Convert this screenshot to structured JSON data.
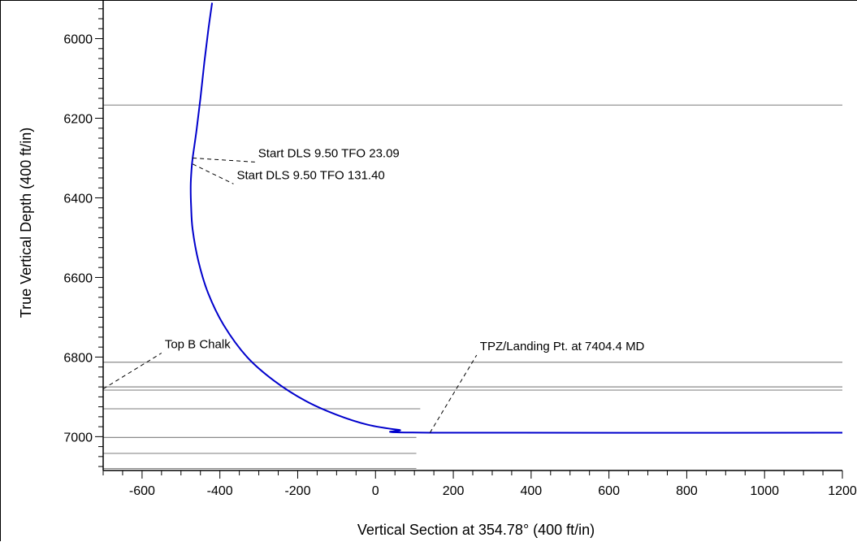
{
  "chart_data": {
    "type": "line",
    "title": "",
    "xlabel": "Vertical Section at 354.78° (400 ft/in)",
    "ylabel": "True Vertical Depth (400 ft/in)",
    "xlim": [
      -700,
      1200
    ],
    "ylim": [
      7085,
      5905
    ],
    "y_inverted": true,
    "x_ticks": [
      -600,
      -400,
      -200,
      0,
      200,
      400,
      600,
      800,
      1000,
      1200
    ],
    "x_tick_labels": [
      "-600",
      "-400",
      "-200",
      "0",
      "200",
      "400",
      "600",
      "800",
      "1000",
      "1200"
    ],
    "y_ticks": [
      6000,
      6200,
      6400,
      6600,
      6800,
      7000
    ],
    "y_tick_labels": [
      "6000",
      "6200",
      "6400",
      "6600",
      "6800",
      "7000"
    ],
    "x_minor_step": 50,
    "y_minor_step": 25,
    "grid": false,
    "series": [
      {
        "color": "#0000cc",
        "points": [
          [
            -420,
            5910
          ],
          [
            -430,
            5980
          ],
          [
            -440,
            6060
          ],
          [
            -450,
            6150
          ],
          [
            -460,
            6230
          ],
          [
            -470,
            6300
          ],
          [
            -473,
            6330
          ],
          [
            -475,
            6370
          ],
          [
            -474,
            6420
          ],
          [
            -470,
            6480
          ],
          [
            -455,
            6560
          ],
          [
            -430,
            6640
          ],
          [
            -390,
            6720
          ],
          [
            -330,
            6800
          ],
          [
            -260,
            6860
          ],
          [
            -180,
            6910
          ],
          [
            -100,
            6945
          ],
          [
            -20,
            6970
          ],
          [
            60,
            6983
          ],
          [
            140,
            6990
          ],
          [
            1200,
            6990
          ]
        ]
      }
    ],
    "formation_lines": [
      {
        "y": 6167,
        "x_start": -700,
        "x_end": 1200
      },
      {
        "y": 6813,
        "x_start": -700,
        "x_end": 1200
      },
      {
        "y": 6875,
        "x_start": -700,
        "x_end": 1200
      },
      {
        "y": 6883,
        "x_start": -700,
        "x_end": 1200
      },
      {
        "y": 6930,
        "x_start": -700,
        "x_end": 115
      },
      {
        "y": 7002,
        "x_start": -700,
        "x_end": 105
      },
      {
        "y": 7042,
        "x_start": -700,
        "x_end": 105
      },
      {
        "y": 7080,
        "x_start": -700,
        "x_end": 105
      }
    ],
    "annotations": [
      {
        "text": "Start DLS 9.50 TFO 23.09",
        "point": [
          -470,
          6300
        ],
        "label": [
          -310,
          6310
        ]
      },
      {
        "text": "Start DLS 9.50 TFO 131.40",
        "point": [
          -470,
          6315
        ],
        "label": [
          -365,
          6365
        ]
      },
      {
        "text": "TPZ/Landing Pt. at 7404.4 MD",
        "point": [
          140,
          6990
        ],
        "label": [
          260,
          6795
        ]
      },
      {
        "text": "Top B Chalk",
        "point": [
          -700,
          6880
        ],
        "label": [
          -550,
          6790
        ]
      }
    ]
  }
}
